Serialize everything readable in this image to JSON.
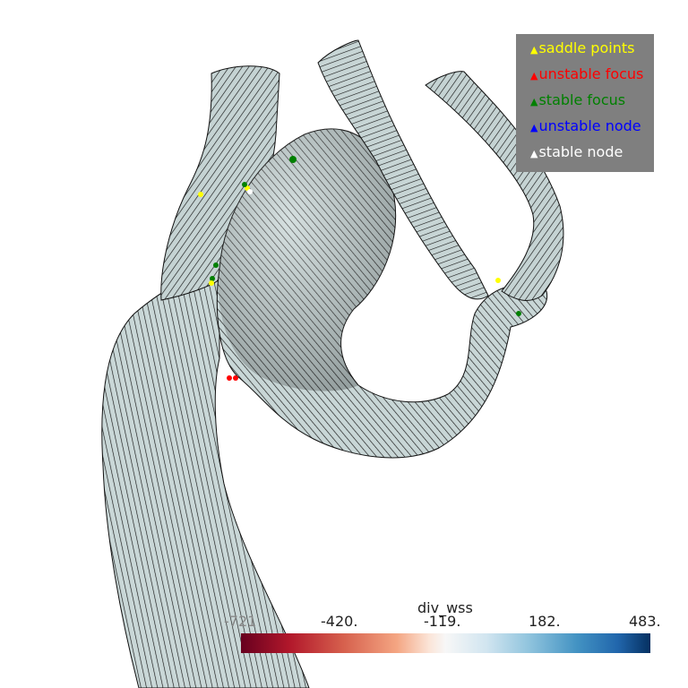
{
  "legend": {
    "items": [
      {
        "label": "saddle points",
        "color": "#ffff00"
      },
      {
        "label": "unstable focus",
        "color": "#ff0000"
      },
      {
        "label": "stable focus",
        "color": "#008000"
      },
      {
        "label": "unstable node",
        "color": "#0000ff"
      },
      {
        "label": "stable node",
        "color": "#ffffff"
      }
    ]
  },
  "colorbar": {
    "title": "div_wss",
    "ticks": [
      "-721",
      "-420.",
      "-119.",
      "182.",
      "483."
    ]
  },
  "colors": {
    "surface": "#c8d6d6",
    "streamlines": "#111111"
  }
}
